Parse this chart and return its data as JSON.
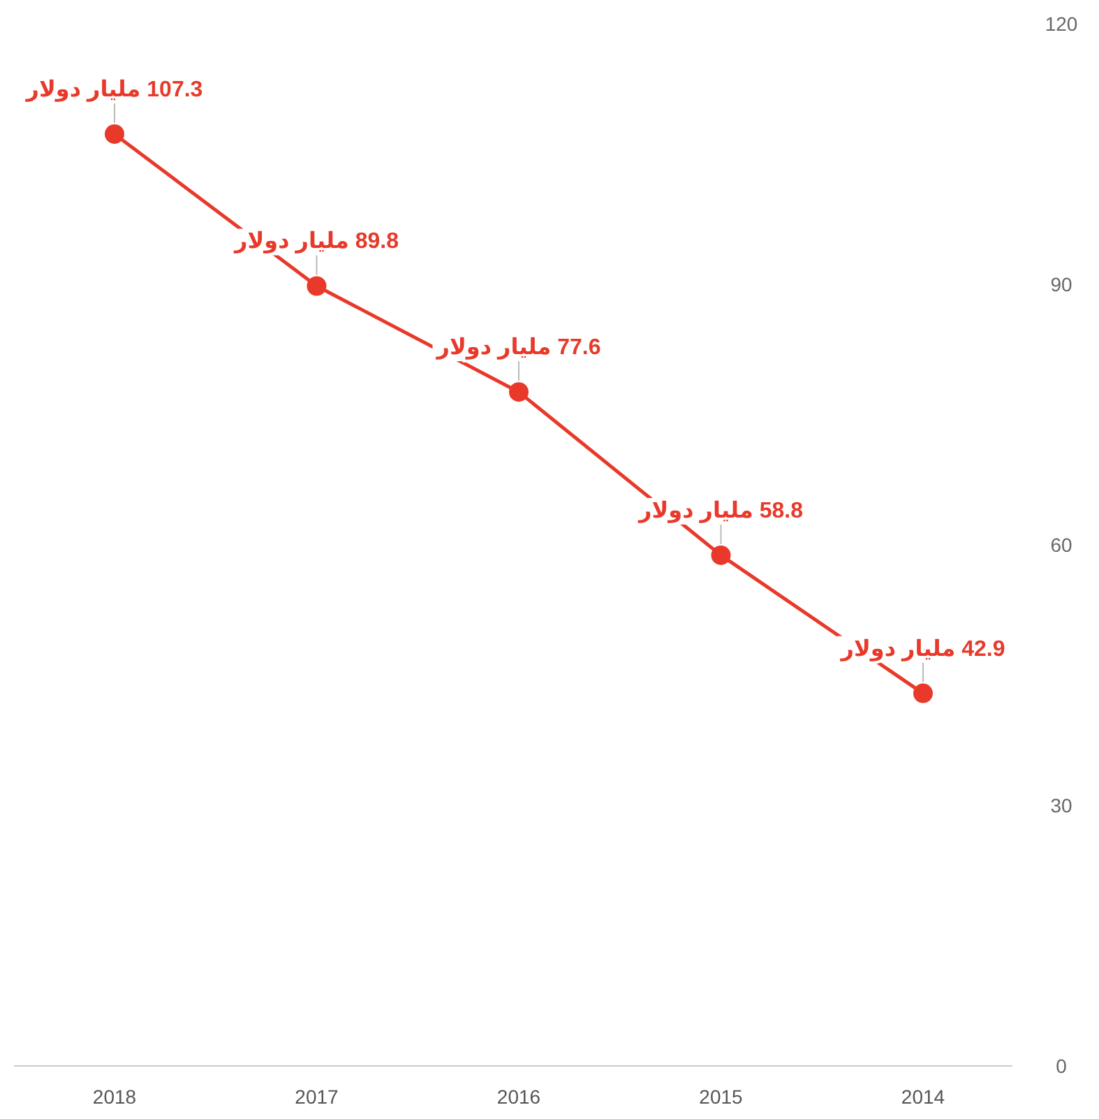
{
  "chart_data": {
    "type": "line",
    "categories": [
      "2018",
      "2017",
      "2016",
      "2015",
      "2014"
    ],
    "values": [
      107.3,
      89.8,
      77.6,
      58.8,
      42.9
    ],
    "value_labels": [
      "107.3 مليار دولار",
      "89.8 مليار دولار",
      "77.6 مليار دولار",
      "58.8 مليار دولار",
      "42.9 مليار دولار"
    ],
    "color": "#e8392a",
    "marker": "circle",
    "line_style": "solid",
    "ylim": [
      0,
      120
    ],
    "yticks": [
      0,
      30,
      60,
      90,
      120
    ],
    "grid": false
  }
}
